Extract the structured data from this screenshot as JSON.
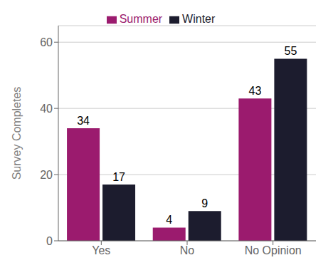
{
  "chart_data": {
    "type": "bar",
    "categories": [
      "Yes",
      "No",
      "No Opinion"
    ],
    "series": [
      {
        "name": "Summer",
        "color": "#9B1B6E",
        "values": [
          34,
          4,
          43
        ]
      },
      {
        "name": "Winter",
        "color": "#1C1C2E",
        "values": [
          17,
          9,
          55
        ]
      }
    ],
    "ylabel": "Survey Completes",
    "ylim": [
      0,
      65
    ],
    "yticks": [
      0,
      20,
      40,
      60
    ],
    "grid": true,
    "legend": "top",
    "data_labels": true
  }
}
